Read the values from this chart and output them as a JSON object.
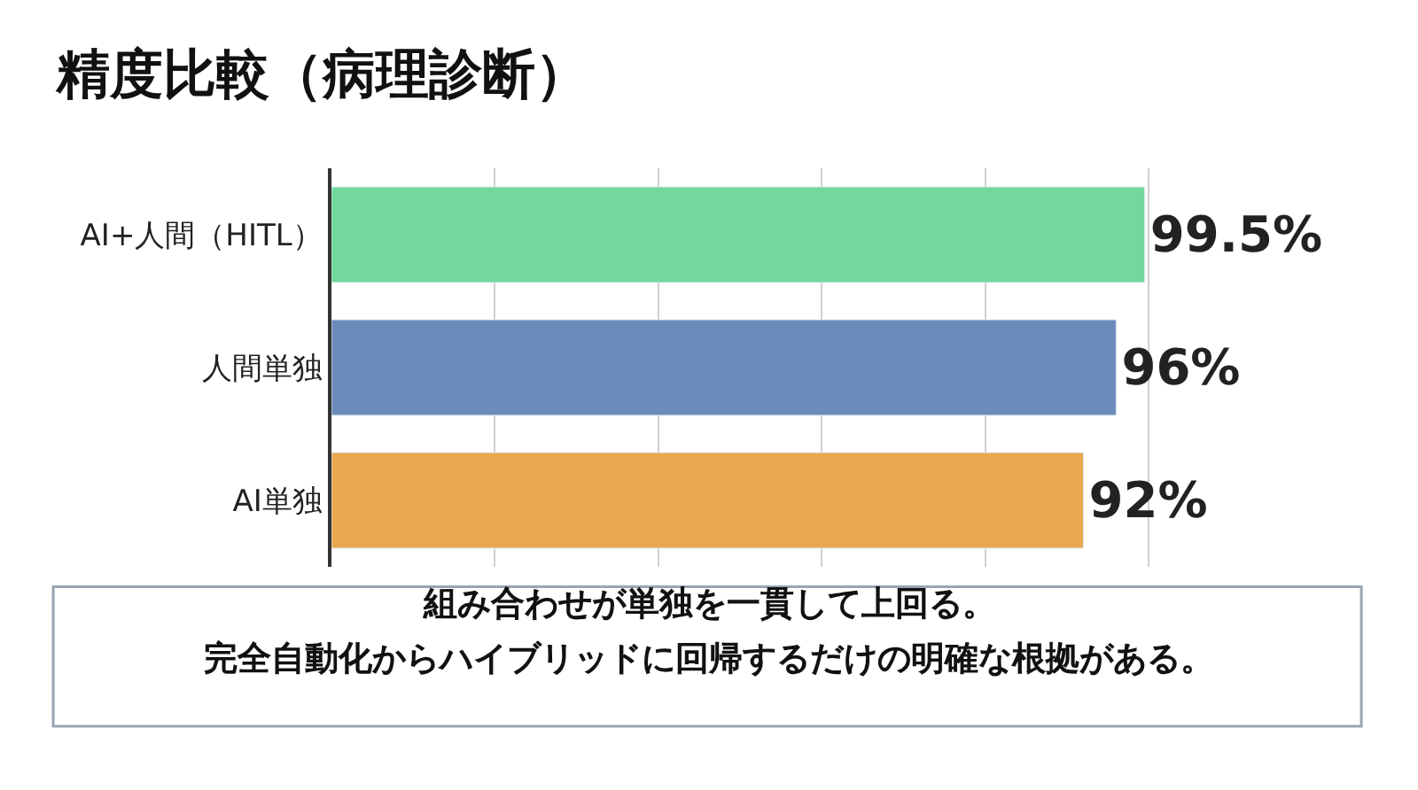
{
  "chart_data": {
    "type": "bar",
    "orientation": "horizontal",
    "title": "精度比較（病理診断）",
    "categories": [
      "AI+人間（HITL）",
      "人間単独",
      "AI単独"
    ],
    "values": [
      99.5,
      96,
      92
    ],
    "value_labels": [
      "99.5%",
      "96%",
      "92%"
    ],
    "colors": [
      "#72d89c",
      "#6b8cba",
      "#e8a84e"
    ],
    "grid": "x",
    "annotations": [
      "組み合わせが単独を一貫して上回る。",
      "完全自動化からハイブリッドに回帰するだけの明確な根拠がある。"
    ]
  }
}
